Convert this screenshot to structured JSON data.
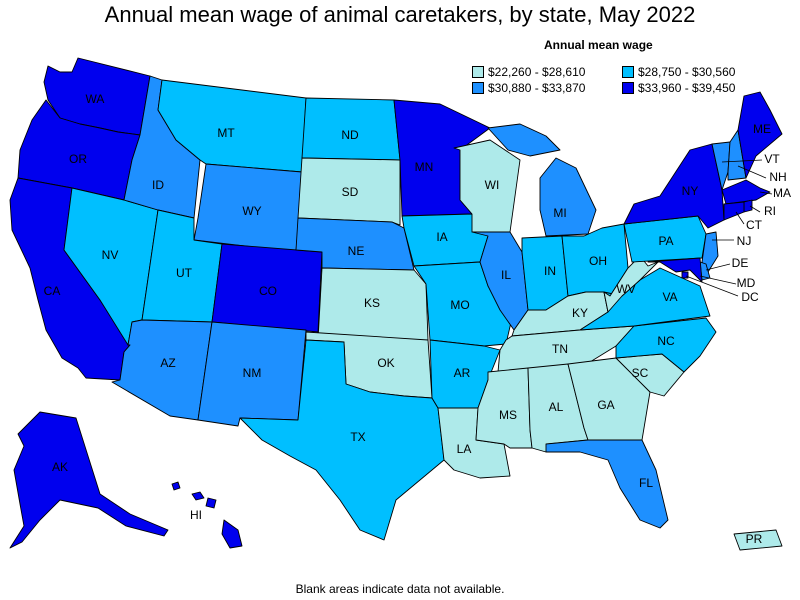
{
  "title": "Annual mean wage of animal caretakers, by state, May 2022",
  "legend": {
    "title": "Annual mean wage",
    "items": [
      {
        "label": "$22,260 - $28,610",
        "color": "#aeeaea"
      },
      {
        "label": "$28,750 - $30,560",
        "color": "#00bfff"
      },
      {
        "label": "$30,880 - $33,870",
        "color": "#1e90ff"
      },
      {
        "label": "$33,960 - $39,450",
        "color": "#0000ee"
      }
    ]
  },
  "footnote": "Blank areas indicate data not available.",
  "states": {
    "WA": {
      "label": "WA",
      "bin": 3
    },
    "OR": {
      "label": "OR",
      "bin": 3
    },
    "CA": {
      "label": "CA",
      "bin": 3
    },
    "NV": {
      "label": "NV",
      "bin": 1
    },
    "ID": {
      "label": "ID",
      "bin": 2
    },
    "MT": {
      "label": "MT",
      "bin": 1
    },
    "WY": {
      "label": "WY",
      "bin": 2
    },
    "UT": {
      "label": "UT",
      "bin": 1
    },
    "AZ": {
      "label": "AZ",
      "bin": 2
    },
    "CO": {
      "label": "CO",
      "bin": 3
    },
    "NM": {
      "label": "NM",
      "bin": 2
    },
    "ND": {
      "label": "ND",
      "bin": 1
    },
    "SD": {
      "label": "SD",
      "bin": 0
    },
    "NE": {
      "label": "NE",
      "bin": 2
    },
    "KS": {
      "label": "KS",
      "bin": 0
    },
    "OK": {
      "label": "OK",
      "bin": 0
    },
    "TX": {
      "label": "TX",
      "bin": 1
    },
    "MN": {
      "label": "MN",
      "bin": 3
    },
    "IA": {
      "label": "IA",
      "bin": 1
    },
    "MO": {
      "label": "MO",
      "bin": 1
    },
    "AR": {
      "label": "AR",
      "bin": 1
    },
    "LA": {
      "label": "LA",
      "bin": 0
    },
    "WI": {
      "label": "WI",
      "bin": 0
    },
    "IL": {
      "label": "IL",
      "bin": 2
    },
    "MI": {
      "label": "MI",
      "bin": 2
    },
    "IN": {
      "label": "IN",
      "bin": 1
    },
    "OH": {
      "label": "OH",
      "bin": 1
    },
    "KY": {
      "label": "KY",
      "bin": 0
    },
    "TN": {
      "label": "TN",
      "bin": 0
    },
    "MS": {
      "label": "MS",
      "bin": 0
    },
    "AL": {
      "label": "AL",
      "bin": 0
    },
    "GA": {
      "label": "GA",
      "bin": 0
    },
    "FL": {
      "label": "FL",
      "bin": 2
    },
    "SC": {
      "label": "SC",
      "bin": 0
    },
    "NC": {
      "label": "NC",
      "bin": 1
    },
    "VA": {
      "label": "VA",
      "bin": 1
    },
    "WV": {
      "label": "WV",
      "bin": 0
    },
    "PA": {
      "label": "PA",
      "bin": 1
    },
    "NY": {
      "label": "NY",
      "bin": 3
    },
    "VT": {
      "label": "VT",
      "bin": 2
    },
    "NH": {
      "label": "NH",
      "bin": 2
    },
    "ME": {
      "label": "ME",
      "bin": 3
    },
    "MA": {
      "label": "MA",
      "bin": 3
    },
    "RI": {
      "label": "RI",
      "bin": 3
    },
    "CT": {
      "label": "CT",
      "bin": 3
    },
    "NJ": {
      "label": "NJ",
      "bin": 2
    },
    "DE": {
      "label": "DE",
      "bin": 2
    },
    "MD": {
      "label": "MD",
      "bin": 3
    },
    "DC": {
      "label": "DC",
      "bin": 3
    },
    "AK": {
      "label": "AK",
      "bin": 3
    },
    "HI": {
      "label": "HI",
      "bin": 3
    },
    "PR": {
      "label": "PR",
      "bin": 0
    }
  }
}
